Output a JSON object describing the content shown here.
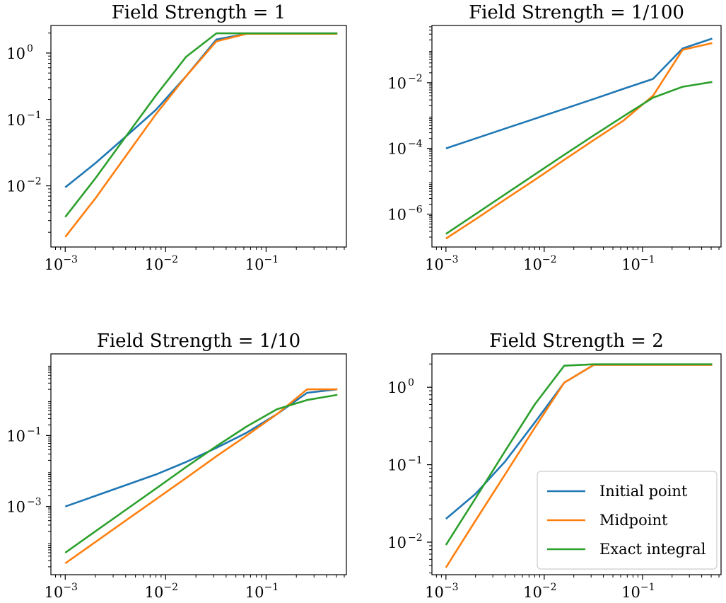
{
  "legend": {
    "placement": "lower-right",
    "panel": 3,
    "entries": [
      {
        "label": "Initial point",
        "color": "#1f77b4"
      },
      {
        "label": "Midpoint",
        "color": "#ff7f0e"
      },
      {
        "label": "Exact integral",
        "color": "#2ca02c"
      }
    ]
  },
  "chart_data": [
    {
      "type": "line",
      "title": "Field Strength = 1",
      "xscale": "log",
      "yscale": "log",
      "xlim": [
        0.00072,
        0.63
      ],
      "ylim": [
        0.0012,
        2.6
      ],
      "x_ticks": [
        {
          "value": 0.001,
          "label": "10",
          "exp": "−3"
        },
        {
          "value": 0.01,
          "label": "10",
          "exp": "−2"
        },
        {
          "value": 0.1,
          "label": "10",
          "exp": "−1"
        }
      ],
      "y_ticks": [
        {
          "value": 1,
          "label": "10",
          "exp": "0"
        },
        {
          "value": 0.1,
          "label": "10",
          "exp": "−1"
        },
        {
          "value": 0.01,
          "label": "10",
          "exp": "−2"
        }
      ],
      "series": [
        {
          "name": "Initial point",
          "color": "#1f77b4",
          "x": [
            0.001,
            0.002,
            0.004,
            0.008,
            0.016,
            0.032,
            0.064,
            0.128,
            0.256,
            0.512
          ],
          "y": [
            0.0095,
            0.022,
            0.055,
            0.14,
            0.45,
            1.6,
            1.95,
            1.95,
            1.95,
            1.95
          ]
        },
        {
          "name": "Midpoint",
          "color": "#ff7f0e",
          "x": [
            0.001,
            0.002,
            0.004,
            0.008,
            0.016,
            0.032,
            0.064,
            0.128,
            0.256,
            0.512
          ],
          "y": [
            0.0017,
            0.0065,
            0.028,
            0.12,
            0.45,
            1.5,
            1.95,
            1.95,
            1.95,
            1.95
          ]
        },
        {
          "name": "Exact integral",
          "color": "#2ca02c",
          "x": [
            0.001,
            0.002,
            0.004,
            0.008,
            0.016,
            0.032,
            0.064,
            0.128,
            0.256,
            0.512
          ],
          "y": [
            0.0034,
            0.013,
            0.055,
            0.23,
            0.88,
            1.98,
            1.98,
            1.98,
            1.98,
            1.98
          ]
        }
      ]
    },
    {
      "type": "line",
      "title": "Field Strength = 1/100",
      "xscale": "log",
      "yscale": "log",
      "xlim": [
        0.00072,
        0.63
      ],
      "ylim": [
        1e-07,
        0.55
      ],
      "x_ticks": [
        {
          "value": 0.001,
          "label": "10",
          "exp": "−3"
        },
        {
          "value": 0.01,
          "label": "10",
          "exp": "−2"
        },
        {
          "value": 0.1,
          "label": "10",
          "exp": "−1"
        }
      ],
      "y_ticks": [
        {
          "value": 0.01,
          "label": "10",
          "exp": "−2"
        },
        {
          "value": 0.0001,
          "label": "10",
          "exp": "−4"
        },
        {
          "value": 1e-06,
          "label": "10",
          "exp": "−6"
        }
      ],
      "series": [
        {
          "name": "Initial point",
          "color": "#1f77b4",
          "x": [
            0.001,
            0.002,
            0.004,
            0.008,
            0.016,
            0.032,
            0.064,
            0.128,
            0.256,
            0.512
          ],
          "y": [
            0.0001,
            0.0002,
            0.0004,
            0.0008,
            0.0016,
            0.0032,
            0.0065,
            0.013,
            0.11,
            0.22
          ]
        },
        {
          "name": "Midpoint",
          "color": "#ff7f0e",
          "x": [
            0.001,
            0.002,
            0.004,
            0.008,
            0.016,
            0.032,
            0.064,
            0.128,
            0.256,
            0.512
          ],
          "y": [
            1.8e-07,
            7e-07,
            2.8e-06,
            1.1e-05,
            4.5e-05,
            0.00018,
            0.0007,
            0.004,
            0.1,
            0.16
          ]
        },
        {
          "name": "Exact integral",
          "color": "#2ca02c",
          "x": [
            0.001,
            0.002,
            0.004,
            0.008,
            0.016,
            0.032,
            0.064,
            0.128,
            0.256,
            0.512
          ],
          "y": [
            2.5e-07,
            1e-06,
            4e-06,
            1.6e-05,
            6.4e-05,
            0.00025,
            0.00095,
            0.0035,
            0.0075,
            0.0105
          ]
        }
      ]
    },
    {
      "type": "line",
      "title": "Field Strength = 1/10",
      "xscale": "log",
      "yscale": "log",
      "xlim": [
        0.00072,
        0.63
      ],
      "ylim": [
        1.2e-05,
        20
      ],
      "x_ticks": [
        {
          "value": 0.001,
          "label": "10",
          "exp": "−3"
        },
        {
          "value": 0.01,
          "label": "10",
          "exp": "−2"
        },
        {
          "value": 0.1,
          "label": "10",
          "exp": "−1"
        }
      ],
      "y_ticks": [
        {
          "value": 0.1,
          "label": "10",
          "exp": "−1"
        },
        {
          "value": 0.001,
          "label": "10",
          "exp": "−3"
        }
      ],
      "series": [
        {
          "name": "Initial point",
          "color": "#1f77b4",
          "x": [
            0.001,
            0.002,
            0.004,
            0.008,
            0.016,
            0.032,
            0.064,
            0.128,
            0.256,
            0.512
          ],
          "y": [
            0.001,
            0.002,
            0.004,
            0.008,
            0.018,
            0.045,
            0.12,
            0.4,
            1.6,
            2.0
          ]
        },
        {
          "name": "Midpoint",
          "color": "#ff7f0e",
          "x": [
            0.001,
            0.002,
            0.004,
            0.008,
            0.016,
            0.032,
            0.064,
            0.128,
            0.256,
            0.512
          ],
          "y": [
            2.5e-05,
            0.0001,
            0.0004,
            0.0016,
            0.0064,
            0.026,
            0.1,
            0.4,
            2.0,
            2.0
          ]
        },
        {
          "name": "Exact integral",
          "color": "#2ca02c",
          "x": [
            0.001,
            0.002,
            0.004,
            0.008,
            0.016,
            0.032,
            0.064,
            0.128,
            0.256,
            0.512
          ],
          "y": [
            5e-05,
            0.0002,
            0.0008,
            0.0032,
            0.013,
            0.05,
            0.18,
            0.55,
            1.0,
            1.4
          ]
        }
      ]
    },
    {
      "type": "line",
      "title": "Field Strength = 2",
      "xscale": "log",
      "yscale": "log",
      "xlim": [
        0.00072,
        0.63
      ],
      "ylim": [
        0.0038,
        2.7
      ],
      "x_ticks": [
        {
          "value": 0.001,
          "label": "10",
          "exp": "−3"
        },
        {
          "value": 0.01,
          "label": "10",
          "exp": "−2"
        },
        {
          "value": 0.1,
          "label": "10",
          "exp": "−1"
        }
      ],
      "y_ticks": [
        {
          "value": 1,
          "label": "10",
          "exp": "0"
        },
        {
          "value": 0.1,
          "label": "10",
          "exp": "−1"
        },
        {
          "value": 0.01,
          "label": "10",
          "exp": "−2"
        }
      ],
      "series": [
        {
          "name": "Initial point",
          "color": "#1f77b4",
          "x": [
            0.001,
            0.002,
            0.004,
            0.008,
            0.016,
            0.032,
            0.064,
            0.128,
            0.256,
            0.512
          ],
          "y": [
            0.02,
            0.042,
            0.11,
            0.35,
            1.15,
            1.95,
            1.95,
            1.95,
            1.95,
            1.95
          ]
        },
        {
          "name": "Midpoint",
          "color": "#ff7f0e",
          "x": [
            0.001,
            0.002,
            0.004,
            0.008,
            0.016,
            0.032,
            0.064,
            0.128,
            0.256,
            0.512
          ],
          "y": [
            0.0047,
            0.019,
            0.075,
            0.3,
            1.15,
            1.95,
            1.95,
            1.95,
            1.95,
            1.95
          ]
        },
        {
          "name": "Exact integral",
          "color": "#2ca02c",
          "x": [
            0.001,
            0.002,
            0.004,
            0.008,
            0.016,
            0.032,
            0.064,
            0.128,
            0.256,
            0.512
          ],
          "y": [
            0.0092,
            0.037,
            0.15,
            0.6,
            1.9,
            1.98,
            1.98,
            1.98,
            1.98,
            1.98
          ]
        }
      ]
    }
  ]
}
